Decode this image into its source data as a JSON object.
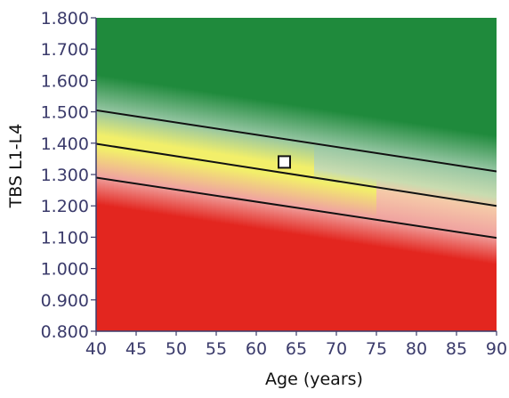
{
  "chart_data": {
    "type": "line",
    "xlabel": "Age (years)",
    "ylabel": "TBS L1-L4",
    "xlim": [
      40,
      90
    ],
    "ylim": [
      0.8,
      1.8
    ],
    "x_ticks": [
      "40",
      "45",
      "50",
      "55",
      "60",
      "65",
      "70",
      "75",
      "80",
      "85",
      "90"
    ],
    "y_ticks": [
      "0.800",
      "0.900",
      "1.000",
      "1.100",
      "1.200",
      "1.300",
      "1.400",
      "1.500",
      "1.600",
      "1.700",
      "1.800"
    ],
    "grid": false,
    "series": [
      {
        "x": [
          40,
          90
        ],
        "y": [
          1.505,
          1.31
        ]
      },
      {
        "x": [
          40,
          90
        ],
        "y": [
          1.398,
          1.2
        ]
      },
      {
        "x": [
          40,
          90
        ],
        "y": [
          1.29,
          1.098
        ]
      }
    ],
    "points": [
      {
        "x": 63.5,
        "y": 1.34
      }
    ],
    "colors": {
      "high": "#1f8a3c",
      "mid_upper": "#96c6a3",
      "mid": "#f2ef6a",
      "mid_lower": "#f0a3a0",
      "low": "#e3261f",
      "line": "#111111",
      "axis": "#3b3b6b",
      "marker_fill": "#ffffff",
      "marker_stroke": "#111111"
    }
  }
}
